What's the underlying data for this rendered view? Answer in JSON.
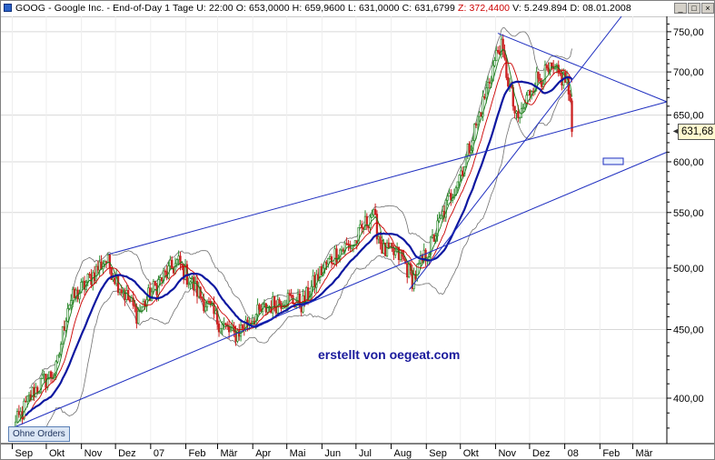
{
  "title_bar": {
    "segments": [
      {
        "text": "GOOG - Google Inc.",
        "color": "#000000"
      },
      {
        "text": "  - End-of-Day 1 Tage",
        "color": "#000000"
      },
      {
        "text": "  U: 22:00",
        "color": "#000000"
      },
      {
        "text": "  O: 653,0000",
        "color": "#000000"
      },
      {
        "text": "  H: 659,9600",
        "color": "#000000"
      },
      {
        "text": "  L: 631,0000",
        "color": "#000000"
      },
      {
        "text": "  C: 631,6799",
        "color": "#000000"
      },
      {
        "text": "  Z: 372,4400",
        "color": "#cc0000"
      },
      {
        "text": "  V: 5.249.894",
        "color": "#000000"
      },
      {
        "text": "  D: 08.01.2008",
        "color": "#000000"
      }
    ],
    "minimize_label": "_",
    "maximize_label": "□",
    "close_label": "×"
  },
  "orders_button": "Ohne Orders",
  "watermark": "erstellt von oegeat.com",
  "last_price": "631,68",
  "colors": {
    "up_candle": "#2e8b2e",
    "down_candle": "#cc2222",
    "ma_long": "#0d17a0",
    "ma_mid": "#cc0000",
    "ma_short": "#1a7a1a",
    "bollinger": "#707070",
    "trendline": "#1f2fc0",
    "grid": "#d8d8d8"
  },
  "chart_data": {
    "type": "candlestick",
    "symbol": "GOOG",
    "y_scale": "log",
    "ylim": [
      370,
      770
    ],
    "y_ticks": [
      {
        "value": 400,
        "label": "400,00"
      },
      {
        "value": 450,
        "label": "450,00"
      },
      {
        "value": 500,
        "label": "500,00"
      },
      {
        "value": 550,
        "label": "550,00"
      },
      {
        "value": 600,
        "label": "600,00"
      },
      {
        "value": 650,
        "label": "650,00"
      },
      {
        "value": 700,
        "label": "700,00"
      },
      {
        "value": 750,
        "label": "750,00"
      }
    ],
    "x_ticks": [
      "Sep",
      "Okt",
      "Nov",
      "Dez",
      "07",
      "Feb",
      "Mär",
      "Apr",
      "Mai",
      "Jun",
      "Jul",
      "Aug",
      "Sep",
      "Okt",
      "Nov",
      "Dez",
      "08",
      "Feb",
      "Mär"
    ],
    "x_period": [
      "2006-09",
      "2008-03"
    ],
    "price_path": [
      {
        "date": "2006-09-01",
        "price": 378
      },
      {
        "date": "2006-09-20",
        "price": 405
      },
      {
        "date": "2006-10-10",
        "price": 420
      },
      {
        "date": "2006-10-20",
        "price": 470
      },
      {
        "date": "2006-11-01",
        "price": 482
      },
      {
        "date": "2006-11-22",
        "price": 508
      },
      {
        "date": "2006-12-05",
        "price": 485
      },
      {
        "date": "2006-12-20",
        "price": 462
      },
      {
        "date": "2007-01-08",
        "price": 488
      },
      {
        "date": "2007-01-25",
        "price": 505
      },
      {
        "date": "2007-02-10",
        "price": 482
      },
      {
        "date": "2007-02-28",
        "price": 458
      },
      {
        "date": "2007-03-15",
        "price": 445
      },
      {
        "date": "2007-03-30",
        "price": 458
      },
      {
        "date": "2007-04-15",
        "price": 468
      },
      {
        "date": "2007-04-30",
        "price": 475
      },
      {
        "date": "2007-05-15",
        "price": 470
      },
      {
        "date": "2007-05-31",
        "price": 497
      },
      {
        "date": "2007-06-15",
        "price": 515
      },
      {
        "date": "2007-06-30",
        "price": 522
      },
      {
        "date": "2007-07-15",
        "price": 550
      },
      {
        "date": "2007-07-25",
        "price": 515
      },
      {
        "date": "2007-08-10",
        "price": 510
      },
      {
        "date": "2007-08-20",
        "price": 490
      },
      {
        "date": "2007-09-05",
        "price": 520
      },
      {
        "date": "2007-09-20",
        "price": 560
      },
      {
        "date": "2007-10-05",
        "price": 600
      },
      {
        "date": "2007-10-20",
        "price": 660
      },
      {
        "date": "2007-11-05",
        "price": 735
      },
      {
        "date": "2007-11-20",
        "price": 640
      },
      {
        "date": "2007-12-05",
        "price": 690
      },
      {
        "date": "2007-12-20",
        "price": 700
      },
      {
        "date": "2008-01-03",
        "price": 690
      },
      {
        "date": "2008-01-08",
        "price": 632
      }
    ],
    "trendlines": [
      {
        "name": "upper-long",
        "from": {
          "date": "2006-11-25",
          "price": 512
        },
        "to": {
          "date": "2008-03-31",
          "price": 665
        }
      },
      {
        "name": "lower-long",
        "from": {
          "date": "2006-09-01",
          "price": 380
        },
        "to": {
          "date": "2008-03-31",
          "price": 610
        }
      },
      {
        "name": "channel-upper",
        "from": {
          "date": "2007-11-03",
          "price": 748
        },
        "to": {
          "date": "2008-03-31",
          "price": 665
        }
      },
      {
        "name": "steep-up",
        "from": {
          "date": "2007-08-17",
          "price": 482
        },
        "to": {
          "date": "2008-02-20",
          "price": 770
        }
      }
    ],
    "indicators": [
      "Bollinger Bands",
      "Moving Average long",
      "Moving Average mid",
      "Moving Average short"
    ],
    "grid": true
  }
}
